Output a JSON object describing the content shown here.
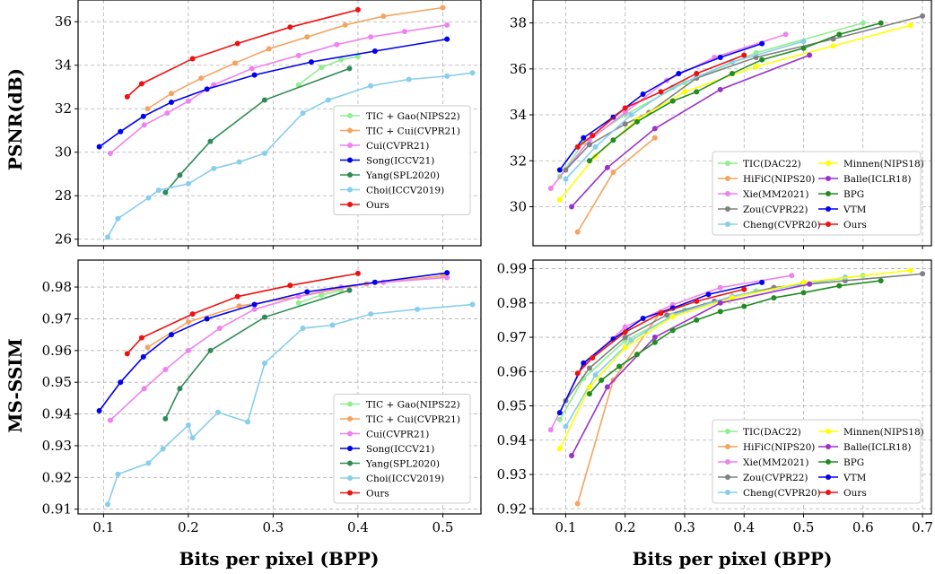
{
  "figure": {
    "ylabel_top": "PSNR(dB)",
    "ylabel_bottom": "MS-SSIM",
    "xlabel_left": "Bits per pixel (BPP)",
    "xlabel_right": "Bits per pixel (BPP)"
  },
  "chart_data": [
    {
      "type": "line",
      "panel": "top-left",
      "xlabel": "",
      "ylabel": "PSNR(dB)",
      "xlim": [
        0.07,
        0.545
      ],
      "ylim": [
        25.7,
        37.0
      ],
      "xticks": [
        0.1,
        0.2,
        0.3,
        0.4,
        0.5
      ],
      "yticks": [
        26,
        28,
        30,
        32,
        34,
        36
      ],
      "xtick_labels": [
        "",
        "",
        "",
        "",
        ""
      ],
      "ytick_labels": [
        "26",
        "28",
        "30",
        "32",
        "34",
        "36"
      ],
      "grid": true,
      "legend_position": "center-right",
      "legend_columns": 1,
      "series": [
        {
          "name": "TIC + Gao(NIPS22)",
          "color": "#90ee90",
          "x": [
            0.33,
            0.357,
            0.38,
            0.4
          ],
          "y": [
            33.1,
            33.9,
            34.25,
            34.4
          ]
        },
        {
          "name": "TIC + Cui(CVPR21)",
          "color": "#f4a460",
          "x": [
            0.152,
            0.18,
            0.215,
            0.255,
            0.295,
            0.34,
            0.385,
            0.43,
            0.5
          ],
          "y": [
            32.0,
            32.7,
            33.4,
            34.1,
            34.75,
            35.3,
            35.85,
            36.25,
            36.65
          ]
        },
        {
          "name": "Cui(CVPR21)",
          "color": "#ee82ee",
          "x": [
            0.108,
            0.148,
            0.175,
            0.2,
            0.23,
            0.275,
            0.33,
            0.375,
            0.415,
            0.455,
            0.505
          ],
          "y": [
            29.95,
            31.25,
            31.8,
            32.35,
            33.1,
            33.85,
            34.45,
            34.95,
            35.3,
            35.55,
            35.85
          ]
        },
        {
          "name": "Song(ICCV21)",
          "color": "#0000ee",
          "x": [
            0.095,
            0.12,
            0.147,
            0.18,
            0.222,
            0.278,
            0.345,
            0.42,
            0.505
          ],
          "y": [
            30.25,
            30.95,
            31.65,
            32.3,
            32.9,
            33.55,
            34.15,
            34.65,
            35.2
          ]
        },
        {
          "name": "Yang(SPL2020)",
          "color": "#2e8b57",
          "x": [
            0.173,
            0.19,
            0.226,
            0.29,
            0.39
          ],
          "y": [
            28.15,
            28.95,
            30.5,
            32.4,
            33.85
          ]
        },
        {
          "name": "Choi(ICCV2019)",
          "color": "#87ceeb",
          "x": [
            0.105,
            0.117,
            0.153,
            0.165,
            0.2,
            0.23,
            0.26,
            0.29,
            0.335,
            0.365,
            0.415,
            0.46,
            0.505,
            0.535
          ],
          "y": [
            26.1,
            26.95,
            27.9,
            28.25,
            28.55,
            29.25,
            29.55,
            29.95,
            31.8,
            32.4,
            33.05,
            33.35,
            33.5,
            33.65
          ]
        },
        {
          "name": "Ours",
          "color": "#ee1111",
          "x": [
            0.128,
            0.145,
            0.205,
            0.258,
            0.32,
            0.4
          ],
          "y": [
            32.55,
            33.15,
            34.3,
            35.0,
            35.75,
            36.55
          ]
        }
      ]
    },
    {
      "type": "line",
      "panel": "top-right",
      "xlabel": "",
      "ylabel": "",
      "xlim": [
        0.045,
        0.715
      ],
      "ylim": [
        28.3,
        39.0
      ],
      "xticks": [
        0.1,
        0.2,
        0.3,
        0.4,
        0.5,
        0.6,
        0.7
      ],
      "yticks": [
        30,
        32,
        34,
        36,
        38
      ],
      "xtick_labels": [
        "",
        "",
        "",
        "",
        "",
        "",
        ""
      ],
      "ytick_labels": [
        "30",
        "32",
        "34",
        "36",
        "38"
      ],
      "grid": true,
      "legend_position": "lower-right",
      "legend_columns": 2,
      "series": [
        {
          "name": "TIC(DAC22)",
          "color": "#90ee90",
          "x": [
            0.09,
            0.13,
            0.2,
            0.3,
            0.42,
            0.6
          ],
          "y": [
            31.3,
            32.8,
            34.0,
            35.4,
            36.7,
            38.0
          ]
        },
        {
          "name": "HiFiC(NIPS20)",
          "color": "#f4a460",
          "x": [
            0.12,
            0.18,
            0.25
          ],
          "y": [
            28.9,
            31.5,
            33.0
          ]
        },
        {
          "name": "Xie(MM2021)",
          "color": "#ee82ee",
          "x": [
            0.075,
            0.14,
            0.2,
            0.27,
            0.35,
            0.47
          ],
          "y": [
            30.8,
            32.9,
            34.1,
            35.5,
            36.5,
            37.5
          ]
        },
        {
          "name": "Zou(CVPR22)",
          "color": "#808080",
          "x": [
            0.1,
            0.14,
            0.2,
            0.24,
            0.32,
            0.42,
            0.55,
            0.7
          ],
          "y": [
            31.6,
            32.7,
            33.6,
            34.1,
            35.6,
            36.5,
            37.3,
            38.3
          ]
        },
        {
          "name": "Cheng(CVPR20)",
          "color": "#87ceeb",
          "x": [
            0.1,
            0.15,
            0.21,
            0.28,
            0.38,
            0.5
          ],
          "y": [
            31.2,
            32.6,
            34.0,
            35.2,
            36.3,
            37.2
          ]
        },
        {
          "name": "Minnen(NIPS18)",
          "color": "#ffff00",
          "x": [
            0.09,
            0.15,
            0.22,
            0.3,
            0.42,
            0.55,
            0.68
          ],
          "y": [
            30.3,
            32.2,
            33.8,
            35.0,
            36.1,
            37.0,
            37.9
          ]
        },
        {
          "name": "Balle(ICLR18)",
          "color": "#9932cc",
          "x": [
            0.11,
            0.17,
            0.25,
            0.36,
            0.51
          ],
          "y": [
            30.0,
            31.7,
            33.4,
            35.1,
            36.6
          ]
        },
        {
          "name": "BPG",
          "color": "#228b22",
          "x": [
            0.14,
            0.18,
            0.22,
            0.28,
            0.32,
            0.38,
            0.43,
            0.5,
            0.56,
            0.63
          ],
          "y": [
            32.0,
            32.9,
            33.7,
            34.6,
            35.0,
            35.8,
            36.4,
            36.9,
            37.5,
            38.0
          ]
        },
        {
          "name": "VTM",
          "color": "#0000ee",
          "x": [
            0.09,
            0.13,
            0.18,
            0.23,
            0.29,
            0.36,
            0.43
          ],
          "y": [
            31.6,
            33.0,
            33.9,
            34.9,
            35.8,
            36.5,
            37.1
          ]
        },
        {
          "name": "Ours",
          "color": "#ee1111",
          "x": [
            0.12,
            0.145,
            0.2,
            0.26,
            0.32,
            0.4
          ],
          "y": [
            32.6,
            33.1,
            34.3,
            35.0,
            35.8,
            36.6
          ]
        }
      ]
    },
    {
      "type": "line",
      "panel": "bottom-left",
      "xlabel": "Bits per pixel (BPP)",
      "ylabel": "MS-SSIM",
      "xlim": [
        0.07,
        0.545
      ],
      "ylim": [
        0.9085,
        0.9885
      ],
      "xticks": [
        0.1,
        0.2,
        0.3,
        0.4,
        0.5
      ],
      "yticks": [
        0.91,
        0.92,
        0.93,
        0.94,
        0.95,
        0.96,
        0.97,
        0.98
      ],
      "xtick_labels": [
        "0.1",
        "0.2",
        "0.3",
        "0.4",
        "0.5"
      ],
      "ytick_labels": [
        "0.91",
        "0.92",
        "0.93",
        "0.94",
        "0.95",
        "0.96",
        "0.97",
        "0.98"
      ],
      "grid": true,
      "legend_position": "lower-right",
      "legend_columns": 1,
      "series": [
        {
          "name": "TIC + Gao(NIPS22)",
          "color": "#90ee90",
          "x": [
            0.33,
            0.357,
            0.38
          ],
          "y": [
            0.975,
            0.9775,
            0.979
          ]
        },
        {
          "name": "TIC + Cui(CVPR21)",
          "color": "#f4a460",
          "x": [
            0.152,
            0.2,
            0.26,
            0.33,
            0.41,
            0.5
          ],
          "y": [
            0.961,
            0.969,
            0.974,
            0.977,
            0.981,
            0.9835
          ]
        },
        {
          "name": "Cui(CVPR21)",
          "color": "#ee82ee",
          "x": [
            0.108,
            0.148,
            0.173,
            0.2,
            0.237,
            0.278,
            0.33,
            0.38,
            0.43,
            0.505
          ],
          "y": [
            0.938,
            0.948,
            0.954,
            0.96,
            0.967,
            0.973,
            0.977,
            0.98,
            0.9815,
            0.983
          ]
        },
        {
          "name": "Song(ICCV21)",
          "color": "#0000ee",
          "x": [
            0.095,
            0.12,
            0.147,
            0.18,
            0.222,
            0.278,
            0.34,
            0.42,
            0.505
          ],
          "y": [
            0.941,
            0.95,
            0.958,
            0.965,
            0.97,
            0.9745,
            0.9785,
            0.9815,
            0.9845
          ]
        },
        {
          "name": "Yang(SPL2020)",
          "color": "#2e8b57",
          "x": [
            0.173,
            0.19,
            0.226,
            0.29,
            0.39
          ],
          "y": [
            0.9385,
            0.948,
            0.96,
            0.9705,
            0.979
          ]
        },
        {
          "name": "Choi(ICCV2019)",
          "color": "#87ceeb",
          "x": [
            0.105,
            0.117,
            0.153,
            0.17,
            0.2,
            0.205,
            0.235,
            0.27,
            0.29,
            0.335,
            0.37,
            0.415,
            0.47,
            0.535
          ],
          "y": [
            0.9115,
            0.921,
            0.9245,
            0.929,
            0.9365,
            0.9325,
            0.9405,
            0.9375,
            0.956,
            0.967,
            0.968,
            0.9715,
            0.973,
            0.9745
          ]
        },
        {
          "name": "Ours",
          "color": "#ee1111",
          "x": [
            0.128,
            0.145,
            0.205,
            0.258,
            0.32,
            0.4
          ],
          "y": [
            0.959,
            0.964,
            0.9715,
            0.977,
            0.9805,
            0.9843
          ]
        }
      ]
    },
    {
      "type": "line",
      "panel": "bottom-right",
      "xlabel": "Bits per pixel (BPP)",
      "ylabel": "",
      "xlim": [
        0.045,
        0.715
      ],
      "ylim": [
        0.9185,
        0.9925
      ],
      "xticks": [
        0.1,
        0.2,
        0.3,
        0.4,
        0.5,
        0.6,
        0.7
      ],
      "yticks": [
        0.92,
        0.93,
        0.94,
        0.95,
        0.96,
        0.97,
        0.98,
        0.99
      ],
      "xtick_labels": [
        "0.1",
        "0.2",
        "0.3",
        "0.4",
        "0.5",
        "0.6",
        "0.7"
      ],
      "ytick_labels": [
        "0.92",
        "0.93",
        "0.94",
        "0.95",
        "0.96",
        "0.97",
        "0.98",
        "0.99"
      ],
      "grid": true,
      "legend_position": "lower-right",
      "legend_columns": 2,
      "series": [
        {
          "name": "TIC(DAC22)",
          "color": "#90ee90",
          "x": [
            0.09,
            0.13,
            0.2,
            0.3,
            0.42,
            0.6
          ],
          "y": [
            0.946,
            0.958,
            0.969,
            0.978,
            0.9835,
            0.988
          ]
        },
        {
          "name": "HiFiC(NIPS20)",
          "color": "#f4a460",
          "x": [
            0.12,
            0.18,
            0.26
          ],
          "y": [
            0.9215,
            0.9575,
            0.9775
          ]
        },
        {
          "name": "Xie(MM2021)",
          "color": "#ee82ee",
          "x": [
            0.075,
            0.13,
            0.2,
            0.28,
            0.36,
            0.48
          ],
          "y": [
            0.943,
            0.962,
            0.973,
            0.9795,
            0.9845,
            0.988
          ]
        },
        {
          "name": "Zou(CVPR22)",
          "color": "#808080",
          "x": [
            0.1,
            0.14,
            0.2,
            0.27,
            0.35,
            0.45,
            0.57,
            0.7
          ],
          "y": [
            0.9515,
            0.961,
            0.97,
            0.9765,
            0.9805,
            0.9845,
            0.9865,
            0.9885
          ]
        },
        {
          "name": "Cheng(CVPR20)",
          "color": "#87ceeb",
          "x": [
            0.1,
            0.15,
            0.21,
            0.28,
            0.38,
            0.5,
            0.57
          ],
          "y": [
            0.944,
            0.959,
            0.969,
            0.9765,
            0.982,
            0.9855,
            0.9875
          ]
        },
        {
          "name": "Minnen(NIPS18)",
          "color": "#ffff00",
          "x": [
            0.09,
            0.14,
            0.2,
            0.28,
            0.38,
            0.5,
            0.68
          ],
          "y": [
            0.9375,
            0.9555,
            0.967,
            0.976,
            0.9815,
            0.986,
            0.9895
          ]
        },
        {
          "name": "Balle(ICLR18)",
          "color": "#9932cc",
          "x": [
            0.11,
            0.17,
            0.25,
            0.36,
            0.51
          ],
          "y": [
            0.9355,
            0.9555,
            0.97,
            0.98,
            0.9855
          ]
        },
        {
          "name": "BPG",
          "color": "#228b22",
          "x": [
            0.14,
            0.16,
            0.19,
            0.22,
            0.25,
            0.28,
            0.32,
            0.36,
            0.4,
            0.45,
            0.5,
            0.56,
            0.63
          ],
          "y": [
            0.9535,
            0.9575,
            0.9615,
            0.965,
            0.9685,
            0.972,
            0.975,
            0.9775,
            0.979,
            0.9815,
            0.983,
            0.985,
            0.9865
          ]
        },
        {
          "name": "VTM",
          "color": "#0000ee",
          "x": [
            0.09,
            0.13,
            0.18,
            0.23,
            0.28,
            0.34,
            0.43
          ],
          "y": [
            0.948,
            0.9625,
            0.9695,
            0.9755,
            0.9785,
            0.9825,
            0.986
          ]
        },
        {
          "name": "Ours",
          "color": "#ee1111",
          "x": [
            0.12,
            0.145,
            0.2,
            0.26,
            0.32,
            0.4
          ],
          "y": [
            0.9595,
            0.964,
            0.9715,
            0.977,
            0.9805,
            0.984
          ]
        }
      ]
    }
  ]
}
